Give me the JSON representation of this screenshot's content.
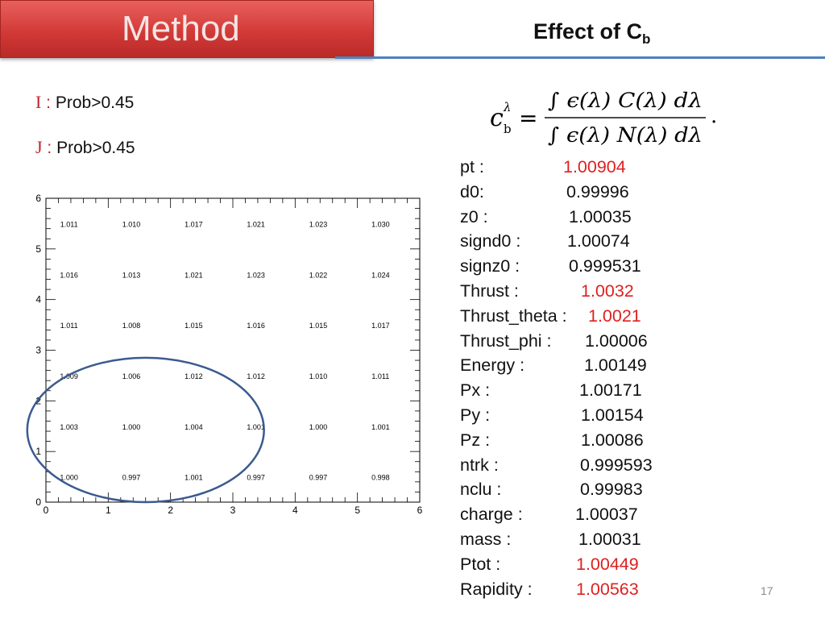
{
  "header": {
    "section": "Method",
    "title_main": "Effect of C",
    "title_sub": "b"
  },
  "conditions": [
    {
      "letter": "I",
      "colon": ":",
      "text": "Prob>0.45"
    },
    {
      "letter": "J",
      "colon": ":",
      "text": "Prob>0.45"
    }
  ],
  "formula": {
    "lhs": "c",
    "lhs_sup": "λ",
    "lhs_sub": "b",
    "eq": "=",
    "numerator": "∫ ϵ(λ) C(λ) dλ",
    "denominator": "∫ ϵ(λ) N(λ) dλ",
    "period": "."
  },
  "chart_data": {
    "type": "heatmap",
    "x_ticks": [
      0,
      1,
      2,
      3,
      4,
      5,
      6
    ],
    "y_ticks": [
      0,
      1,
      2,
      3,
      4,
      5,
      6
    ],
    "xlim": [
      0,
      6
    ],
    "ylim": [
      0,
      6
    ],
    "x_centers": [
      0.5,
      1.5,
      2.5,
      3.5,
      4.5,
      5.5
    ],
    "y_centers": [
      0.5,
      1.5,
      2.5,
      3.5,
      4.5,
      5.5
    ],
    "values_top_to_bottom": [
      [
        "1.011",
        "1.010",
        "1.017",
        "1.021",
        "1.023",
        "1.030"
      ],
      [
        "1.016",
        "1.013",
        "1.021",
        "1.023",
        "1.022",
        "1.024"
      ],
      [
        "1.011",
        "1.008",
        "1.015",
        "1.016",
        "1.015",
        "1.017"
      ],
      [
        "1.009",
        "1.006",
        "1.012",
        "1.012",
        "1.010",
        "1.011"
      ],
      [
        "1.003",
        "1.000",
        "1.004",
        "1.001",
        "1.000",
        "1.001"
      ],
      [
        "1.000",
        "0.997",
        "1.001",
        "0.997",
        "0.997",
        "0.998"
      ]
    ],
    "highlight": {
      "shape": "ellipse",
      "color": "#3b5a8f",
      "x_range": [
        -0.3,
        3.5
      ],
      "y_range": [
        0,
        2.85
      ]
    }
  },
  "variables": [
    {
      "label": "pt :",
      "value": "1.00904",
      "highlight": true
    },
    {
      "label": "d0:",
      "value": "0.99996",
      "highlight": false
    },
    {
      "label": "z0  :",
      "value": "1.00035",
      "highlight": false
    },
    {
      "label": "signd0  :",
      "value": "1.00074",
      "highlight": false
    },
    {
      "label": "signz0  :",
      "value": "0.999531",
      "highlight": false
    },
    {
      "label": "Thrust  :",
      "value": "1.0032",
      "highlight": true
    },
    {
      "label": "Thrust_theta  :",
      "value": "1.0021",
      "highlight": true
    },
    {
      "label": "Thrust_phi  :",
      "value": "1.00006",
      "highlight": false
    },
    {
      "label": "Energy  :",
      "value": "1.00149",
      "highlight": false
    },
    {
      "label": "Px  :",
      "value": "1.00171",
      "highlight": false
    },
    {
      "label": "Py  :",
      "value": "1.00154",
      "highlight": false
    },
    {
      "label": "Pz  :",
      "value": "1.00086",
      "highlight": false
    },
    {
      "label": "ntrk  :",
      "value": "0.999593",
      "highlight": false
    },
    {
      "label": "nclu  :",
      "value": "0.99983",
      "highlight": false
    },
    {
      "label": "charge  :",
      "value": "1.00037",
      "highlight": false
    },
    {
      "label": "mass  :",
      "value": "1.00031",
      "highlight": false
    },
    {
      "label": "Ptot  :",
      "value": "1.00449",
      "highlight": true
    },
    {
      "label": "Rapidity  :",
      "value": "1.00563",
      "highlight": true
    }
  ],
  "page_number": "17",
  "colors": {
    "highlight_value": "#e02020",
    "banner": "#d23a37",
    "rule": "#4f81bd",
    "letter": "#c0232c"
  }
}
